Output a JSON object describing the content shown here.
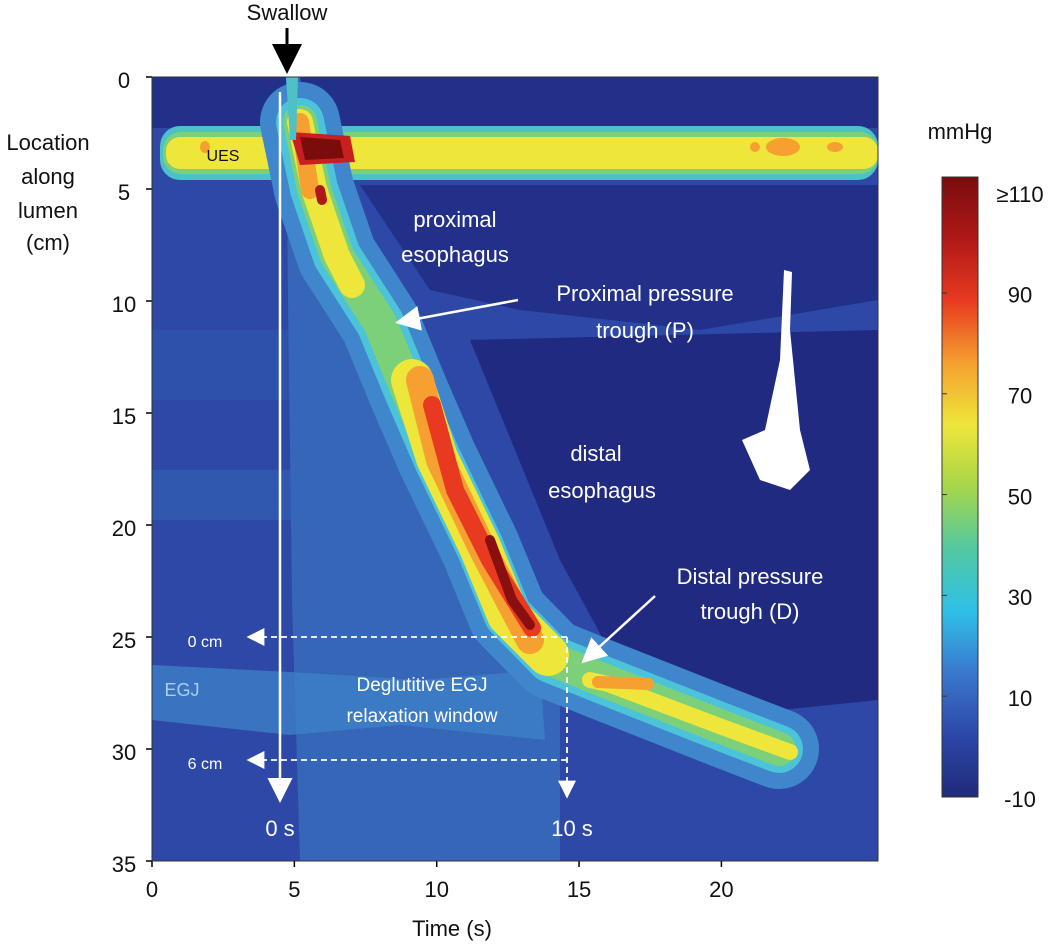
{
  "chart_data": {
    "type": "contour",
    "x_label": "Time (s)",
    "y_label": [
      "Location",
      "along",
      "lumen",
      "(cm)"
    ],
    "xlim": [
      0,
      25.5
    ],
    "xticks": [
      0,
      5,
      10,
      15,
      20
    ],
    "ylim": [
      35,
      0
    ],
    "yticks": [
      0,
      5,
      10,
      15,
      20,
      25,
      30,
      35
    ],
    "colorbar": {
      "label": "mmHg",
      "lim": [
        -10,
        113
      ],
      "ticks": [
        -10,
        10,
        30,
        50,
        70,
        90,
        {
          "value": 110,
          "label": "≥110"
        }
      ],
      "colors": [
        "#1f2a7a",
        "#2c48a8",
        "#3a78cc",
        "#2fc0e8",
        "#52c9a2",
        "#a6d64a",
        "#eee63a",
        "#f5a030",
        "#e83a20",
        "#b01818",
        "#7a0c0c"
      ]
    },
    "annotations": {
      "swallow": "Swallow",
      "ues": "UES",
      "proximal": [
        "proximal",
        "esophagus"
      ],
      "proximal_trough": [
        "Proximal pressure",
        "trough (P)"
      ],
      "distal": [
        "distal",
        "esophagus"
      ],
      "distal_trough": [
        "Distal pressure",
        "trough (D)"
      ],
      "zero_cm": "0 cm",
      "six_cm": "6 cm",
      "egj": "EGJ",
      "window": [
        "Deglutitive EGJ",
        "relaxation window"
      ],
      "zero_s": "0 s",
      "ten_s": "10 s"
    }
  }
}
